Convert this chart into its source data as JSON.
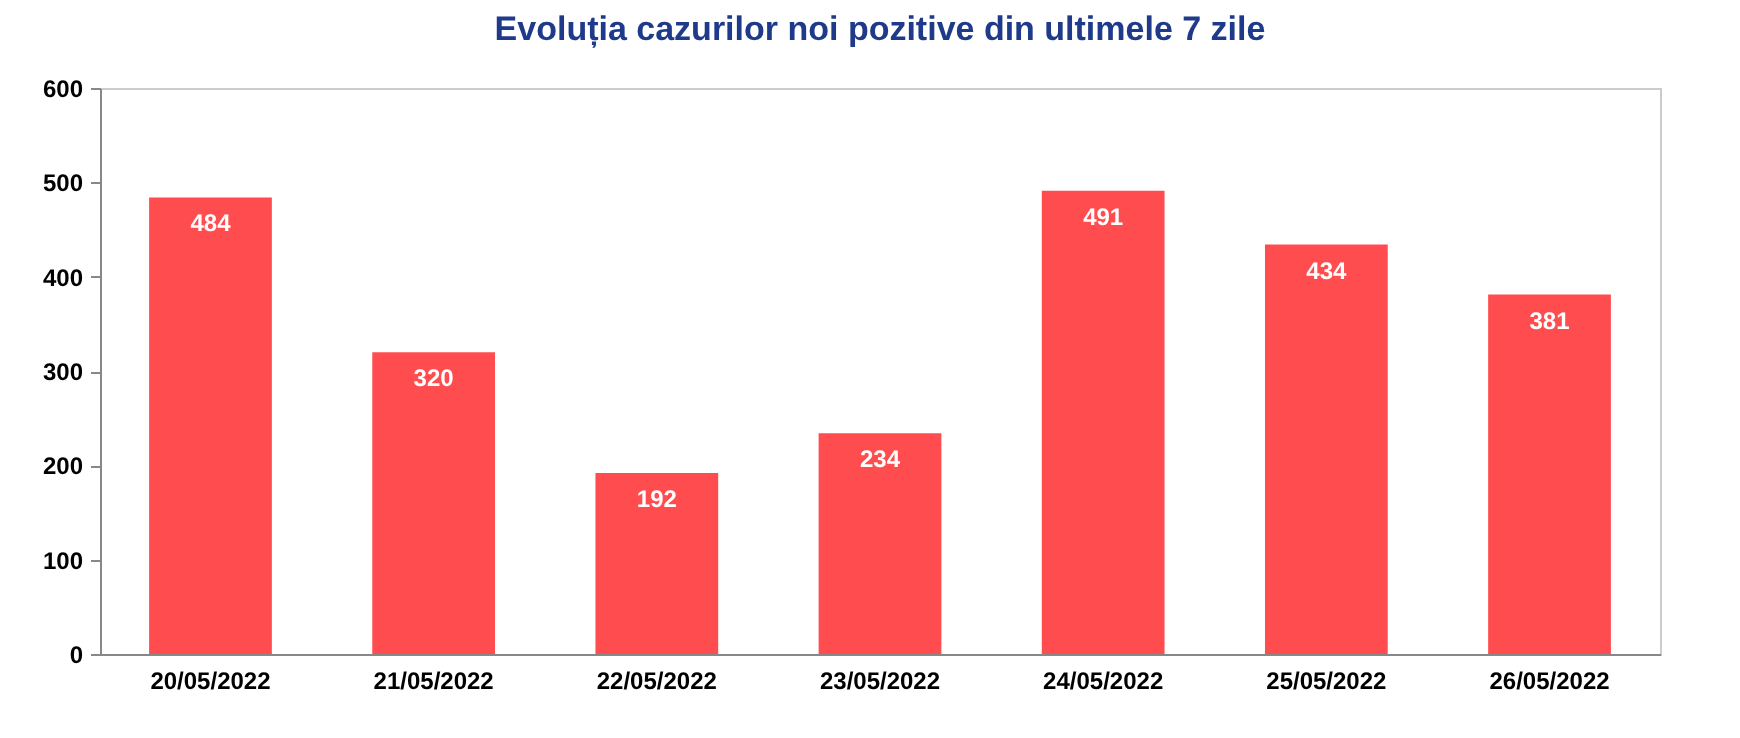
{
  "chart_data": {
    "type": "bar",
    "title": "Evoluția cazurilor noi pozitive din ultimele 7 zile",
    "categories": [
      "20/05/2022",
      "21/05/2022",
      "22/05/2022",
      "23/05/2022",
      "24/05/2022",
      "25/05/2022",
      "26/05/2022"
    ],
    "values": [
      484,
      320,
      192,
      234,
      491,
      434,
      381
    ],
    "color": "#ff4d4f",
    "ylim": [
      0,
      600
    ],
    "yticks": [
      0,
      100,
      200,
      300,
      400,
      500,
      600
    ],
    "grid": false,
    "data_labels": true
  }
}
